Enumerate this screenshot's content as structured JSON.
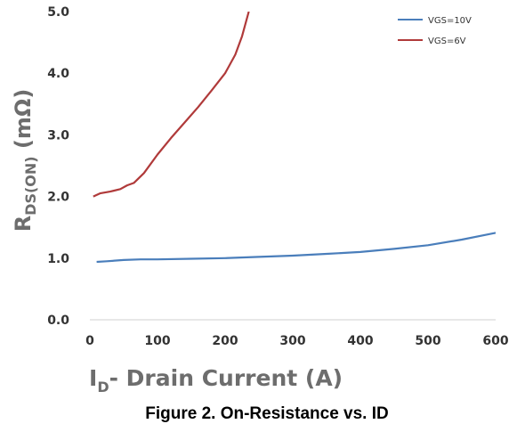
{
  "chart_data": {
    "type": "line",
    "title": "",
    "caption": "Figure 2. On-Resistance vs. ID",
    "xlabel": {
      "main": "I",
      "sub": "D",
      "rest": "- Drain Current (A)"
    },
    "ylabel": {
      "main": "R",
      "sub": "DS(ON)",
      "rest": " (mΩ)"
    },
    "xlim": [
      0,
      600
    ],
    "ylim": [
      0,
      5
    ],
    "xticks": [
      "0",
      "100",
      "200",
      "300",
      "400",
      "500",
      "600"
    ],
    "yticks": [
      "0.0",
      "1.0",
      "2.0",
      "3.0",
      "4.0",
      "5.0"
    ],
    "grid": false,
    "legend_position": "top-right",
    "series": [
      {
        "name": "VGS=10V",
        "color": "#4a7ebb",
        "points": [
          [
            10,
            0.94
          ],
          [
            25,
            0.95
          ],
          [
            50,
            0.97
          ],
          [
            75,
            0.98
          ],
          [
            100,
            0.98
          ],
          [
            150,
            0.99
          ],
          [
            200,
            1.0
          ],
          [
            250,
            1.02
          ],
          [
            300,
            1.04
          ],
          [
            350,
            1.07
          ],
          [
            400,
            1.1
          ],
          [
            450,
            1.15
          ],
          [
            500,
            1.21
          ],
          [
            550,
            1.3
          ],
          [
            600,
            1.41
          ]
        ]
      },
      {
        "name": "VGS=6V",
        "color": "#b03a3a",
        "points": [
          [
            5,
            2.0
          ],
          [
            15,
            2.05
          ],
          [
            30,
            2.08
          ],
          [
            45,
            2.12
          ],
          [
            55,
            2.18
          ],
          [
            65,
            2.22
          ],
          [
            80,
            2.38
          ],
          [
            100,
            2.68
          ],
          [
            120,
            2.95
          ],
          [
            140,
            3.2
          ],
          [
            160,
            3.45
          ],
          [
            180,
            3.72
          ],
          [
            200,
            4.0
          ],
          [
            215,
            4.3
          ],
          [
            225,
            4.6
          ],
          [
            235,
            5.0
          ]
        ]
      }
    ]
  }
}
